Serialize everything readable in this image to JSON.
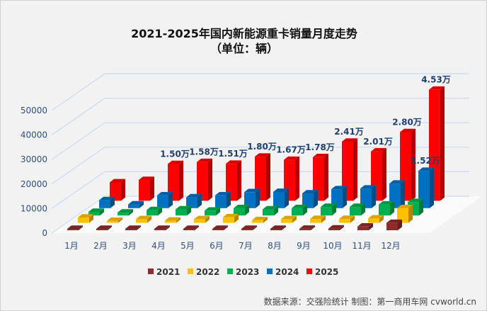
{
  "chart_data": {
    "type": "bar",
    "title": "2021-2025年国内新能源重卡销量月度走势",
    "subtitle": "（单位：辆）",
    "categories": [
      "1月",
      "2月",
      "3月",
      "4月",
      "5月",
      "6月",
      "7月",
      "8月",
      "9月",
      "10月",
      "11月",
      "12月"
    ],
    "yticks": [
      "0",
      "10000",
      "20000",
      "30000",
      "40000",
      "50000"
    ],
    "ylim": [
      0,
      50000
    ],
    "grid": true,
    "legend": "bottom",
    "series": [
      {
        "name": "2021",
        "color": "#8e2b2b",
        "values": [
          200,
          150,
          200,
          250,
          250,
          250,
          350,
          350,
          600,
          700,
          1500,
          3000
        ]
      },
      {
        "name": "2022",
        "color": "#ffc000",
        "values": [
          2200,
          800,
          1500,
          900,
          1500,
          2300,
          1100,
          1500,
          1600,
          1600,
          1800,
          6000
        ]
      },
      {
        "name": "2023",
        "color": "#00b050",
        "values": [
          1500,
          1200,
          2200,
          2500,
          2000,
          3000,
          2500,
          3000,
          3500,
          3500,
          4500,
          5500
        ]
      },
      {
        "name": "2024",
        "color": "#0070c0",
        "values": [
          3200,
          1500,
          5200,
          4400,
          5200,
          6500,
          6600,
          6000,
          7700,
          8000,
          10000,
          15200
        ]
      },
      {
        "name": "2025",
        "color": "#ff0000",
        "values": [
          7500,
          8500,
          15000,
          15800,
          15100,
          18000,
          16700,
          17800,
          24100,
          20100,
          28000,
          45300
        ]
      }
    ],
    "data_labels": [
      {
        "series": "2025",
        "month": "3月",
        "text": "1.50万"
      },
      {
        "series": "2025",
        "month": "4月",
        "text": "1.58万"
      },
      {
        "series": "2025",
        "month": "5月",
        "text": "1.51万"
      },
      {
        "series": "2025",
        "month": "6月",
        "text": "1.80万"
      },
      {
        "series": "2025",
        "month": "7月",
        "text": "1.67万"
      },
      {
        "series": "2025",
        "month": "8月",
        "text": "1.78万"
      },
      {
        "series": "2025",
        "month": "9月",
        "text": "2.41万"
      },
      {
        "series": "2025",
        "month": "10月",
        "text": "2.01万"
      },
      {
        "series": "2025",
        "month": "11月",
        "text": "2.80万"
      },
      {
        "series": "2025",
        "month": "12月",
        "text": "4.53万"
      },
      {
        "series": "2024",
        "month": "12月",
        "text": "1.52万"
      }
    ]
  },
  "footer": "数据来源：交强险统计  制图：第一商用车网 cvworld.cn"
}
